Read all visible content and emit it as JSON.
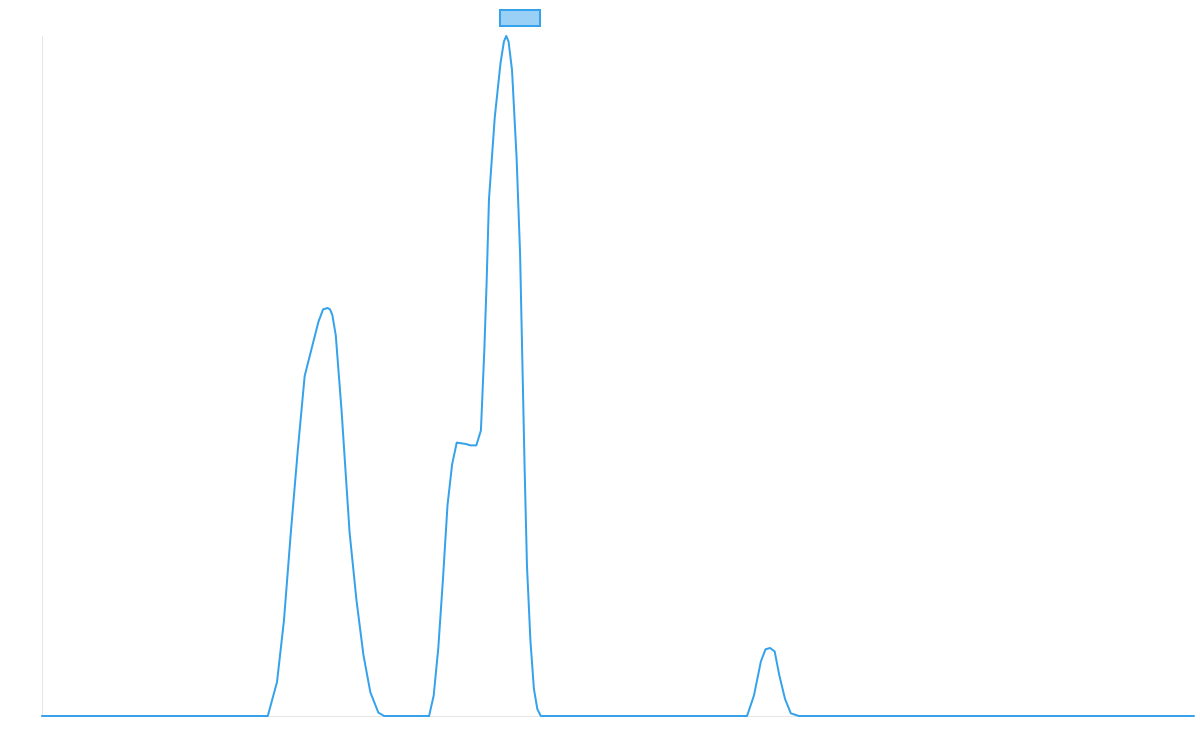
{
  "chart_data": {
    "type": "line",
    "title": "",
    "xlabel": "",
    "ylabel": "",
    "grid": false,
    "legend_position": "top-center",
    "colors": {
      "series": "#36a2eb",
      "legend_fill": "#9ad0f5",
      "axis": "#e6e6e6"
    },
    "xlim": [
      0,
      1
    ],
    "ylim": [
      0,
      1
    ],
    "series": [
      {
        "name": "",
        "x": [
          0.0,
          0.1,
          0.196,
          0.204,
          0.21,
          0.216,
          0.222,
          0.228,
          0.234,
          0.24,
          0.244,
          0.248,
          0.25,
          0.252,
          0.255,
          0.26,
          0.267,
          0.273,
          0.279,
          0.285,
          0.292,
          0.297,
          0.31,
          0.32,
          0.336,
          0.34,
          0.344,
          0.348,
          0.352,
          0.356,
          0.36,
          0.368,
          0.372,
          0.377,
          0.381,
          0.384,
          0.386,
          0.388,
          0.393,
          0.398,
          0.401,
          0.403,
          0.405,
          0.408,
          0.412,
          0.415,
          0.417,
          0.419,
          0.421,
          0.424,
          0.427,
          0.43,
          0.433,
          0.435,
          0.45,
          0.55,
          0.612,
          0.618,
          0.624,
          0.628,
          0.632,
          0.636,
          0.64,
          0.645,
          0.65,
          0.657,
          0.8,
          1.0
        ],
        "y": [
          0.0,
          0.0,
          0.0,
          0.05,
          0.14,
          0.27,
          0.39,
          0.5,
          0.54,
          0.58,
          0.598,
          0.6,
          0.598,
          0.59,
          0.56,
          0.45,
          0.27,
          0.17,
          0.09,
          0.035,
          0.005,
          0.0,
          0.0,
          0.0,
          0.0,
          0.03,
          0.1,
          0.2,
          0.31,
          0.37,
          0.402,
          0.4,
          0.398,
          0.398,
          0.42,
          0.54,
          0.64,
          0.76,
          0.88,
          0.96,
          0.992,
          1.0,
          0.992,
          0.95,
          0.82,
          0.68,
          0.52,
          0.36,
          0.22,
          0.11,
          0.04,
          0.01,
          0.0,
          0.0,
          0.0,
          0.0,
          0.0,
          0.03,
          0.08,
          0.098,
          0.1,
          0.095,
          0.06,
          0.025,
          0.004,
          0.0,
          0.0,
          0.0
        ]
      }
    ]
  }
}
